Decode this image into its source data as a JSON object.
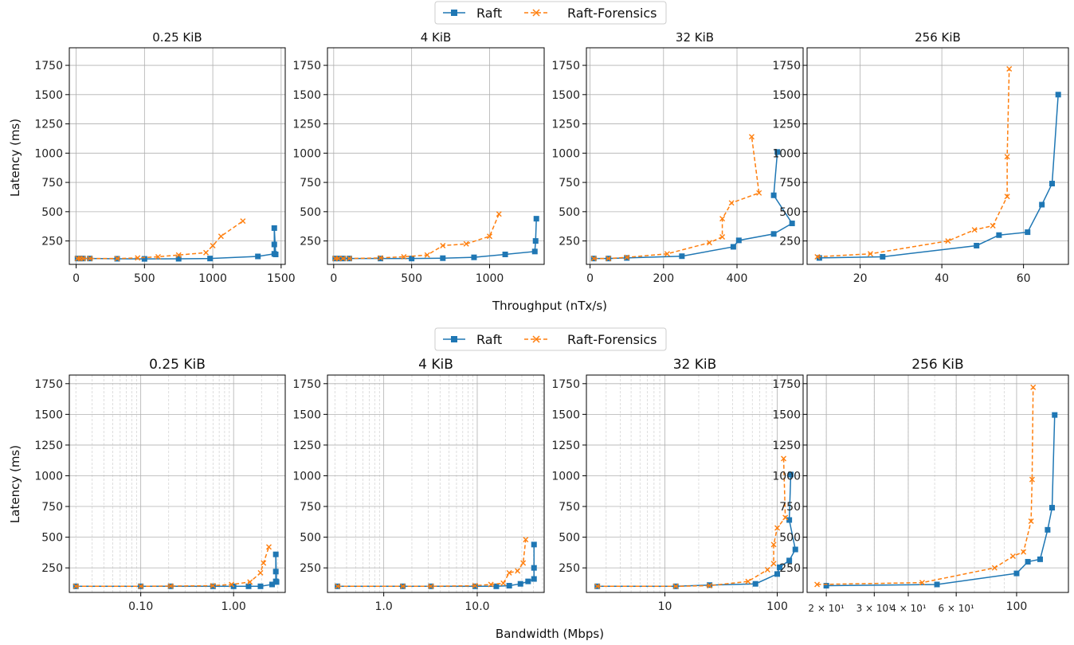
{
  "colors": {
    "raft": "#1f77b4",
    "forensics": "#ff7f0e",
    "grid": "#b0b0b0"
  },
  "figure": {
    "legend": {
      "raft": "Raft",
      "forensics": "Raft-Forensics"
    },
    "row1_xlabel": "Throughput (nTx/s)",
    "row2_xlabel": "Bandwidth (Mbps)",
    "ylabel": "Latency (ms)"
  },
  "chart_data": [
    {
      "type": "line",
      "title": "0.25 KiB",
      "xlabel": "",
      "ylabel": "Latency (ms)",
      "xscale": "linear",
      "xlim": [
        -50,
        1530
      ],
      "ylim": [
        50,
        1900
      ],
      "xticks": [
        0,
        500,
        1000,
        1500
      ],
      "xticklabels": [
        "0",
        "500",
        "1000",
        "1500"
      ],
      "yticks": [
        250,
        500,
        750,
        1000,
        1250,
        1500,
        1750
      ],
      "grid": true,
      "series": [
        {
          "name": "Raft",
          "x": [
            10,
            30,
            50,
            100,
            300,
            500,
            750,
            980,
            1330,
            1450,
            1450,
            1450,
            1460
          ],
          "y": [
            100,
            100,
            100,
            100,
            98,
            97,
            98,
            100,
            118,
            140,
            220,
            360,
            135
          ]
        },
        {
          "name": "Raft-Forensics",
          "x": [
            10,
            30,
            50,
            100,
            300,
            450,
            600,
            750,
            950,
            1000,
            1060,
            1220
          ],
          "y": [
            100,
            100,
            100,
            100,
            100,
            105,
            115,
            130,
            150,
            210,
            290,
            420
          ]
        }
      ]
    },
    {
      "type": "line",
      "title": "4 KiB",
      "xlabel": "",
      "ylabel": "",
      "xscale": "linear",
      "xlim": [
        -40,
        1350
      ],
      "ylim": [
        50,
        1900
      ],
      "xticks": [
        0,
        500,
        1000
      ],
      "xticklabels": [
        "0",
        "500",
        "1000"
      ],
      "yticks": [
        250,
        500,
        750,
        1000,
        1250,
        1500,
        1750
      ],
      "grid": true,
      "series": [
        {
          "name": "Raft",
          "x": [
            10,
            30,
            60,
            100,
            300,
            500,
            700,
            900,
            1100,
            1290,
            1295,
            1300
          ],
          "y": [
            100,
            100,
            100,
            100,
            100,
            100,
            103,
            110,
            135,
            160,
            250,
            440
          ]
        },
        {
          "name": "Raft-Forensics",
          "x": [
            10,
            30,
            60,
            100,
            300,
            450,
            600,
            700,
            850,
            1000,
            1060
          ],
          "y": [
            100,
            100,
            100,
            100,
            105,
            115,
            130,
            210,
            225,
            290,
            480
          ]
        }
      ]
    },
    {
      "type": "line",
      "title": "32 KiB",
      "xlabel": "",
      "ylabel": "",
      "xscale": "linear",
      "xlim": [
        -10,
        580
      ],
      "ylim": [
        50,
        1900
      ],
      "xticks": [
        0,
        200,
        400
      ],
      "xticklabels": [
        "0",
        "200",
        "400"
      ],
      "yticks": [
        250,
        500,
        750,
        1000,
        1250,
        1500,
        1750
      ],
      "grid": true,
      "series": [
        {
          "name": "Raft",
          "x": [
            10,
            50,
            100,
            250,
            390,
            405,
            500,
            550,
            500,
            510
          ],
          "y": [
            100,
            100,
            105,
            120,
            200,
            255,
            310,
            400,
            640,
            1010
          ]
        },
        {
          "name": "Raft-Forensics",
          "x": [
            10,
            50,
            100,
            210,
            325,
            360,
            360,
            385,
            460,
            440
          ],
          "y": [
            100,
            100,
            110,
            140,
            235,
            285,
            440,
            575,
            660,
            1140
          ]
        }
      ]
    },
    {
      "type": "line",
      "title": "256 KiB",
      "xlabel": "",
      "ylabel": "",
      "xscale": "linear",
      "xlim": [
        7,
        71
      ],
      "ylim": [
        50,
        1900
      ],
      "xticks": [
        20,
        40,
        60
      ],
      "xticklabels": [
        "20",
        "40",
        "60"
      ],
      "yticks": [
        250,
        500,
        750,
        1000,
        1250,
        1500,
        1750
      ],
      "grid": true,
      "series": [
        {
          "name": "Raft",
          "x": [
            10,
            25.5,
            48.5,
            54,
            61,
            64.5,
            67,
            68.5
          ],
          "y": [
            105,
            115,
            210,
            300,
            325,
            560,
            740,
            1500
          ]
        },
        {
          "name": "Raft-Forensics",
          "x": [
            9.5,
            22.5,
            41.5,
            48,
            52.5,
            56,
            56,
            56.5
          ],
          "y": [
            115,
            140,
            250,
            345,
            380,
            630,
            970,
            1720
          ]
        }
      ]
    },
    {
      "type": "line",
      "title": "0.25 KiB",
      "xlabel": "",
      "ylabel": "Latency (ms)",
      "xscale": "log",
      "xlim": [
        0.017,
        3.6
      ],
      "ylim": [
        50,
        1820
      ],
      "xticks": [
        0.1,
        1.0
      ],
      "xticklabels": [
        "0.10",
        "1.00"
      ],
      "yticks": [
        250,
        500,
        750,
        1000,
        1250,
        1500,
        1750
      ],
      "grid": true,
      "series": [
        {
          "name": "Raft",
          "x": [
            0.02,
            0.1,
            0.21,
            0.6,
            1.0,
            1.45,
            1.95,
            2.6,
            2.85,
            2.85,
            2.85,
            2.9
          ],
          "y": [
            100,
            100,
            100,
            100,
            100,
            100,
            100,
            115,
            140,
            220,
            360,
            135
          ]
        },
        {
          "name": "Raft-Forensics",
          "x": [
            0.02,
            0.1,
            0.21,
            0.6,
            0.95,
            1.5,
            1.95,
            2.1,
            2.4
          ],
          "y": [
            100,
            100,
            102,
            105,
            115,
            135,
            210,
            290,
            420
          ]
        }
      ]
    },
    {
      "type": "line",
      "title": "4 KiB",
      "xlabel": "",
      "ylabel": "",
      "xscale": "log",
      "xlim": [
        0.25,
        52
      ],
      "ylim": [
        50,
        1820
      ],
      "xticks": [
        1,
        10
      ],
      "xticklabels": [
        "1.0",
        "10.0"
      ],
      "yticks": [
        250,
        500,
        750,
        1000,
        1250,
        1500,
        1750
      ],
      "grid": true,
      "series": [
        {
          "name": "Raft",
          "x": [
            0.32,
            1.6,
            3.2,
            9.5,
            16,
            22,
            29,
            35,
            40.5,
            40.5,
            40.5
          ],
          "y": [
            100,
            100,
            100,
            100,
            100,
            105,
            120,
            140,
            160,
            250,
            440
          ]
        },
        {
          "name": "Raft-Forensics",
          "x": [
            0.32,
            1.6,
            3.2,
            9.5,
            14,
            19,
            22,
            27,
            31,
            33
          ],
          "y": [
            100,
            100,
            100,
            105,
            115,
            125,
            210,
            225,
            290,
            480
          ]
        }
      ]
    },
    {
      "type": "line",
      "title": "32 KiB",
      "xlabel": "",
      "ylabel": "",
      "xscale": "log",
      "xlim": [
        2,
        170
      ],
      "ylim": [
        50,
        1820
      ],
      "xticks": [
        10,
        100
      ],
      "xticklabels": [
        "10",
        "100"
      ],
      "yticks": [
        250,
        500,
        750,
        1000,
        1250,
        1500,
        1750
      ],
      "grid": true,
      "series": [
        {
          "name": "Raft",
          "x": [
            2.5,
            12.5,
            25,
            64,
            100,
            105,
            128,
            145,
            128,
            132
          ],
          "y": [
            100,
            100,
            110,
            120,
            200,
            255,
            310,
            400,
            640,
            1010
          ]
        },
        {
          "name": "Raft-Forensics",
          "x": [
            2.5,
            12.5,
            25,
            55,
            82,
            93,
            93,
            100,
            118,
            114
          ],
          "y": [
            100,
            100,
            105,
            140,
            235,
            285,
            440,
            575,
            660,
            1140
          ]
        }
      ]
    },
    {
      "type": "line",
      "title": "256 KiB",
      "xlabel": "",
      "ylabel": "",
      "xscale": "log",
      "xlim": [
        17,
        155
      ],
      "ylim": [
        50,
        1820
      ],
      "xticks": [
        20,
        30,
        40,
        60,
        100
      ],
      "xticklabels": [
        "2 × 10¹",
        "3 × 10¹",
        "4 × 10¹",
        "6 × 10¹",
        "100"
      ],
      "yticks": [
        250,
        500,
        750,
        1000,
        1250,
        1500,
        1750
      ],
      "grid": true,
      "series": [
        {
          "name": "Raft",
          "x": [
            20,
            51,
            100,
            110,
            122,
            130,
            135,
            138
          ],
          "y": [
            105,
            115,
            205,
            300,
            320,
            560,
            740,
            1495
          ]
        },
        {
          "name": "Raft-Forensics",
          "x": [
            18.5,
            45,
            83,
            97,
            106,
            113,
            114,
            115
          ],
          "y": [
            115,
            130,
            250,
            345,
            380,
            630,
            970,
            1720
          ]
        }
      ]
    }
  ]
}
